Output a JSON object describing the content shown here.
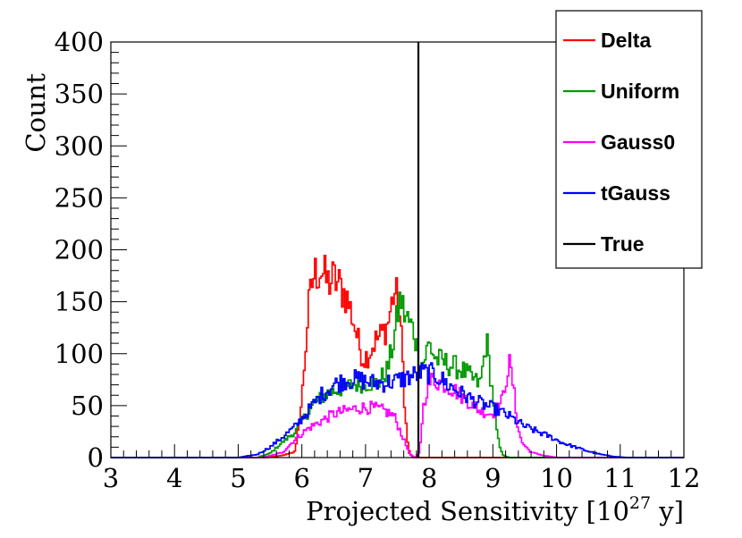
{
  "chart_data": {
    "type": "line",
    "style": "step-histogram",
    "title": "",
    "xlabel": "Projected Sensitivity [10^27 y]",
    "xlabel_parts": {
      "main": "Projected Sensitivity [10",
      "exponent": "27",
      "unit": " y]"
    },
    "ylabel": "Count",
    "xlim": [
      3,
      12
    ],
    "ylim": [
      0,
      400
    ],
    "xticks": [
      3,
      4,
      5,
      6,
      7,
      8,
      9,
      10,
      11,
      12
    ],
    "xtick_labels": [
      "3",
      "4",
      "5",
      "6",
      "7",
      "8",
      "9",
      "10",
      "11",
      "12"
    ],
    "yticks": [
      0,
      50,
      100,
      150,
      200,
      250,
      300,
      350,
      400
    ],
    "ytick_labels": [
      "0",
      "50",
      "100",
      "150",
      "200",
      "250",
      "300",
      "350",
      "400"
    ],
    "bin_width": 0.025,
    "legend_position": "top-right",
    "true_value": 7.83,
    "series": [
      {
        "name": "Delta",
        "color": "#ff0000",
        "points": [
          [
            3,
            0
          ],
          [
            5.45,
            0
          ],
          [
            5.7,
            2
          ],
          [
            5.9,
            6
          ],
          [
            6.0,
            55
          ],
          [
            6.1,
            140
          ],
          [
            6.18,
            175
          ],
          [
            6.3,
            182
          ],
          [
            6.4,
            168
          ],
          [
            6.5,
            172
          ],
          [
            6.6,
            165
          ],
          [
            6.7,
            155
          ],
          [
            6.8,
            135
          ],
          [
            6.9,
            108
          ],
          [
            6.97,
            95
          ],
          [
            7.05,
            100
          ],
          [
            7.15,
            112
          ],
          [
            7.25,
            118
          ],
          [
            7.35,
            128
          ],
          [
            7.45,
            160
          ],
          [
            7.52,
            150
          ],
          [
            7.58,
            100
          ],
          [
            7.62,
            45
          ],
          [
            7.66,
            15
          ],
          [
            7.7,
            3
          ],
          [
            7.75,
            0
          ],
          [
            12,
            0
          ]
        ]
      },
      {
        "name": "Uniform",
        "color": "#009900",
        "points": [
          [
            3,
            0
          ],
          [
            5.3,
            0
          ],
          [
            5.5,
            4
          ],
          [
            5.7,
            15
          ],
          [
            5.9,
            25
          ],
          [
            6.0,
            35
          ],
          [
            6.2,
            52
          ],
          [
            6.4,
            62
          ],
          [
            6.6,
            66
          ],
          [
            6.8,
            70
          ],
          [
            7.0,
            72
          ],
          [
            7.2,
            72
          ],
          [
            7.35,
            85
          ],
          [
            7.45,
            115
          ],
          [
            7.5,
            135
          ],
          [
            7.55,
            155
          ],
          [
            7.6,
            140
          ],
          [
            7.7,
            128
          ],
          [
            7.76,
            122
          ],
          [
            7.8,
            110
          ],
          [
            7.86,
            95
          ],
          [
            7.9,
            90
          ],
          [
            8.0,
            110
          ],
          [
            8.1,
            95
          ],
          [
            8.3,
            90
          ],
          [
            8.5,
            85
          ],
          [
            8.7,
            75
          ],
          [
            8.8,
            70
          ],
          [
            8.85,
            90
          ],
          [
            8.9,
            115
          ],
          [
            8.95,
            85
          ],
          [
            9.0,
            60
          ],
          [
            9.05,
            30
          ],
          [
            9.1,
            12
          ],
          [
            9.15,
            3
          ],
          [
            9.25,
            0
          ],
          [
            12,
            0
          ]
        ]
      },
      {
        "name": "Gauss0",
        "color": "#ff00ff",
        "points": [
          [
            3,
            0
          ],
          [
            5.4,
            0
          ],
          [
            5.7,
            5
          ],
          [
            5.9,
            18
          ],
          [
            6.1,
            28
          ],
          [
            6.3,
            35
          ],
          [
            6.5,
            42
          ],
          [
            6.7,
            45
          ],
          [
            6.9,
            48
          ],
          [
            7.1,
            48
          ],
          [
            7.3,
            45
          ],
          [
            7.45,
            40
          ],
          [
            7.55,
            25
          ],
          [
            7.65,
            10
          ],
          [
            7.7,
            3
          ],
          [
            7.78,
            0
          ],
          [
            7.85,
            5
          ],
          [
            7.9,
            45
          ],
          [
            7.97,
            68
          ],
          [
            8.05,
            75
          ],
          [
            8.2,
            72
          ],
          [
            8.4,
            65
          ],
          [
            8.6,
            55
          ],
          [
            8.8,
            45
          ],
          [
            9.0,
            42
          ],
          [
            9.15,
            55
          ],
          [
            9.22,
            80
          ],
          [
            9.26,
            90
          ],
          [
            9.32,
            70
          ],
          [
            9.38,
            35
          ],
          [
            9.45,
            15
          ],
          [
            9.6,
            5
          ],
          [
            9.8,
            2
          ],
          [
            10.0,
            0
          ],
          [
            12,
            0
          ]
        ]
      },
      {
        "name": "tGauss",
        "color": "#0000ff",
        "points": [
          [
            3,
            0
          ],
          [
            5.0,
            0
          ],
          [
            5.3,
            3
          ],
          [
            5.5,
            10
          ],
          [
            5.7,
            20
          ],
          [
            5.9,
            30
          ],
          [
            6.1,
            45
          ],
          [
            6.3,
            60
          ],
          [
            6.5,
            70
          ],
          [
            6.7,
            75
          ],
          [
            6.9,
            75
          ],
          [
            7.1,
            72
          ],
          [
            7.3,
            72
          ],
          [
            7.5,
            74
          ],
          [
            7.7,
            78
          ],
          [
            7.9,
            82
          ],
          [
            8.1,
            80
          ],
          [
            8.3,
            70
          ],
          [
            8.5,
            62
          ],
          [
            8.7,
            55
          ],
          [
            8.9,
            50
          ],
          [
            9.1,
            45
          ],
          [
            9.3,
            38
          ],
          [
            9.5,
            30
          ],
          [
            9.7,
            25
          ],
          [
            9.9,
            20
          ],
          [
            10.1,
            14
          ],
          [
            10.3,
            10
          ],
          [
            10.5,
            6
          ],
          [
            10.7,
            3
          ],
          [
            10.9,
            1
          ],
          [
            11.1,
            0
          ],
          [
            12,
            0
          ]
        ]
      },
      {
        "name": "True",
        "color": "#000000",
        "vertical_line_at": 7.83
      }
    ]
  }
}
